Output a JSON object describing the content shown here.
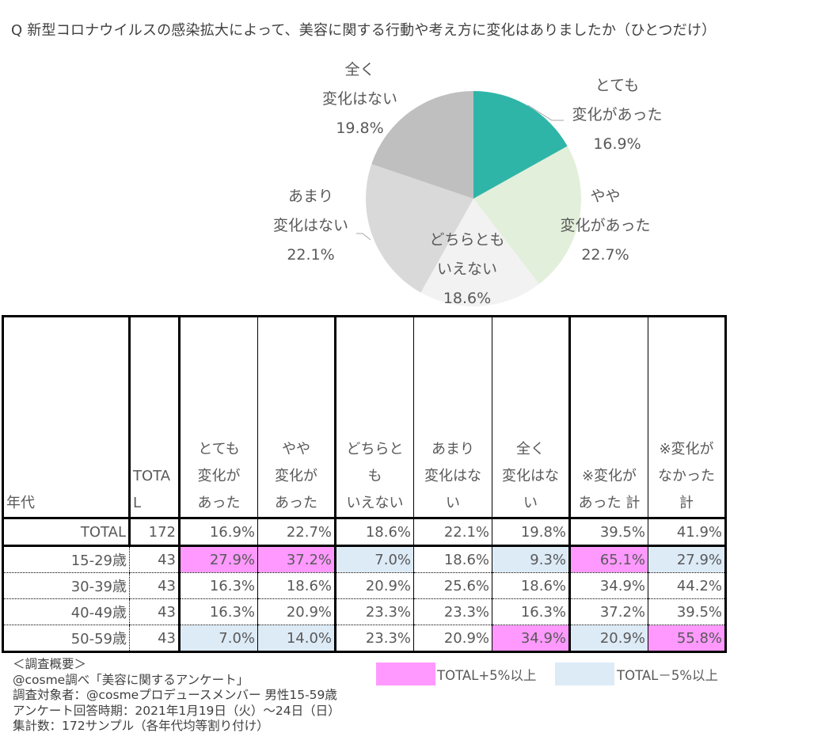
{
  "title": "Q 新型コロナウイルスの感染拡大によって、美容に関する行動や考え方に変化はありましたか（ひとつだけ）",
  "chart_data": {
    "type": "pie",
    "title": "Q 新型コロナウイルスの感染拡大によって、美容に関する行動や考え方に変化はありましたか（ひとつだけ）",
    "start_angle_deg": 0,
    "direction": "clockwise",
    "slices": [
      {
        "label_lines": [
          "とても",
          "変化があった"
        ],
        "value": 16.9,
        "value_label": "16.9%",
        "color": "#2fb5a8"
      },
      {
        "label_lines": [
          "やや",
          "変化があった"
        ],
        "value": 22.7,
        "value_label": "22.7%",
        "color": "#e2efda"
      },
      {
        "label_lines": [
          "どちらとも",
          "いえない"
        ],
        "value": 18.6,
        "value_label": "18.6%",
        "color": "#f2f2f2"
      },
      {
        "label_lines": [
          "あまり",
          "変化はない"
        ],
        "value": 22.1,
        "value_label": "22.1%",
        "color": "#d9d9d9"
      },
      {
        "label_lines": [
          "全く",
          "変化はない"
        ],
        "value": 19.8,
        "value_label": "19.8%",
        "color": "#bfbfbf"
      }
    ]
  },
  "table": {
    "headers": [
      [
        "年代"
      ],
      [
        "TOTA",
        "L"
      ],
      [
        "とても",
        "変化が",
        "あった"
      ],
      [
        "やや",
        "変化が",
        "あった"
      ],
      [
        "どちらと",
        "も",
        "いえない"
      ],
      [
        "あまり",
        "変化はな",
        "い"
      ],
      [
        "全く",
        "変化はな",
        "い"
      ],
      [
        "※変化が",
        "あった 計"
      ],
      [
        "※変化が",
        "なかった",
        "計"
      ]
    ],
    "rows": [
      {
        "label": "TOTAL",
        "n": "172",
        "values": [
          "16.9%",
          "22.7%",
          "18.6%",
          "22.1%",
          "19.8%",
          "39.5%",
          "41.9%"
        ],
        "flags": [
          "",
          "",
          "",
          "",
          "",
          "",
          ""
        ]
      },
      {
        "label": "15-29歳",
        "n": "43",
        "values": [
          "27.9%",
          "37.2%",
          "7.0%",
          "18.6%",
          "9.3%",
          "65.1%",
          "27.9%"
        ],
        "flags": [
          "hi",
          "hi",
          "lo",
          "",
          "lo",
          "hi",
          "lo"
        ]
      },
      {
        "label": "30-39歳",
        "n": "43",
        "values": [
          "16.3%",
          "18.6%",
          "20.9%",
          "25.6%",
          "18.6%",
          "34.9%",
          "44.2%"
        ],
        "flags": [
          "",
          "",
          "",
          "",
          "",
          "",
          ""
        ]
      },
      {
        "label": "40-49歳",
        "n": "43",
        "values": [
          "16.3%",
          "20.9%",
          "23.3%",
          "23.3%",
          "16.3%",
          "37.2%",
          "39.5%"
        ],
        "flags": [
          "",
          "",
          "",
          "",
          "",
          "",
          ""
        ]
      },
      {
        "label": "50-59歳",
        "n": "43",
        "values": [
          "7.0%",
          "14.0%",
          "23.3%",
          "20.9%",
          "34.9%",
          "20.9%",
          "55.8%"
        ],
        "flags": [
          "lo",
          "lo",
          "",
          "",
          "hi",
          "lo",
          "hi"
        ]
      }
    ]
  },
  "notes": [
    "＜調査概要＞",
    "@cosme調べ「美容に関するアンケート」",
    "調査対象者：@cosmeプロデュースメンバー 男性15-59歳",
    "アンケート回答時期：2021年1月19日（火）～24日（日）",
    "集計数：172サンプル（各年代均等割り付け）"
  ],
  "legend": [
    {
      "label": "TOTAL+5%以上",
      "color": "#ff99ff"
    },
    {
      "label": "TOTAL－5%以上",
      "color": "#ddebf7"
    }
  ]
}
